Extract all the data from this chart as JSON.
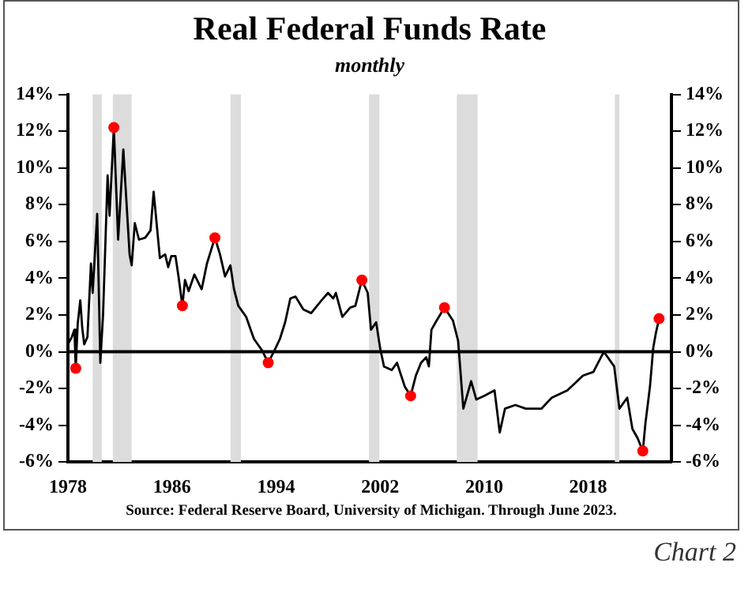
{
  "chart_data": {
    "type": "line",
    "title": "Real Federal Funds Rate",
    "subtitle": "monthly",
    "annotations": [
      "Source: Federal Reserve Board, University of Michigan. Through June 2023.",
      "Chart 2"
    ],
    "xlim": [
      1978,
      2024.4
    ],
    "xticks": [
      1978,
      1986,
      1994,
      2002,
      2010,
      2018
    ],
    "ylim": [
      -6,
      14
    ],
    "yticks": [
      {
        "value": -6,
        "label": "-6%"
      },
      {
        "value": -4,
        "label": "-4%"
      },
      {
        "value": -2,
        "label": "-2%"
      },
      {
        "value": 0,
        "label": "0%"
      },
      {
        "value": 2,
        "label": "2%"
      },
      {
        "value": 4,
        "label": "4%"
      },
      {
        "value": 6,
        "label": "6%"
      },
      {
        "value": 8,
        "label": "8%"
      },
      {
        "value": 10,
        "label": "10%"
      },
      {
        "value": 12,
        "label": "12%"
      },
      {
        "value": 14,
        "label": "14%"
      }
    ],
    "y2lim": [
      -6,
      14
    ],
    "y2ticks": [
      {
        "value": -6,
        "label": "-6%"
      },
      {
        "value": -4,
        "label": "-4%"
      },
      {
        "value": -2,
        "label": "-2%"
      },
      {
        "value": 0,
        "label": "0%"
      },
      {
        "value": 2,
        "label": "2%"
      },
      {
        "value": 4,
        "label": "4%"
      },
      {
        "value": 6,
        "label": "6%"
      },
      {
        "value": 8,
        "label": "8%"
      },
      {
        "value": 10,
        "label": "10%"
      },
      {
        "value": 12,
        "label": "12%"
      },
      {
        "value": 14,
        "label": "14%"
      }
    ],
    "grid": false,
    "legend": false,
    "series": [
      {
        "type": "line",
        "color": "#000000",
        "marker": "none",
        "line_style": "solid",
        "x": [
          1978.0,
          1978.3,
          1978.5,
          1978.6,
          1978.75,
          1978.95,
          1979.1,
          1979.25,
          1979.5,
          1979.77,
          1979.9,
          1980.25,
          1980.49,
          1980.7,
          1981.05,
          1981.2,
          1981.53,
          1981.86,
          1982.26,
          1982.74,
          1982.9,
          1983.14,
          1983.46,
          1983.94,
          1984.35,
          1984.59,
          1985.07,
          1985.47,
          1985.71,
          1985.95,
          1986.27,
          1986.5,
          1986.8,
          1987.0,
          1987.28,
          1987.72,
          1988.28,
          1988.69,
          1989.3,
          1989.69,
          1990.08,
          1990.49,
          1990.77,
          1991.1,
          1991.7,
          1992.3,
          1992.9,
          1993.4,
          1993.9,
          1994.3,
          1994.7,
          1995.1,
          1995.5,
          1996.1,
          1996.7,
          1997.5,
          1998.0,
          1998.4,
          1998.6,
          1999.1,
          1999.7,
          2000.1,
          2000.6,
          2001.05,
          2001.3,
          2001.7,
          2002.0,
          2002.3,
          2002.9,
          2003.3,
          2003.9,
          2004.35,
          2004.75,
          2005.15,
          2005.55,
          2005.75,
          2005.95,
          2006.35,
          2006.95,
          2007.6,
          2008.0,
          2008.4,
          2009.0,
          2009.4,
          2010.0,
          2010.8,
          2011.2,
          2011.6,
          2012.4,
          2013.2,
          2014.4,
          2015.2,
          2016.4,
          2017.6,
          2018.4,
          2019.2,
          2020.0,
          2020.4,
          2021.0,
          2021.4,
          2021.8,
          2022.2,
          2022.4,
          2022.75,
          2023.0,
          2023.2,
          2023.45
        ],
        "values": [
          0.4,
          0.8,
          1.2,
          -0.9,
          1.5,
          2.8,
          1.3,
          0.4,
          0.8,
          4.8,
          3.2,
          7.5,
          -0.6,
          2.0,
          9.6,
          7.4,
          12.2,
          6.1,
          11.0,
          5.3,
          4.7,
          7.0,
          6.1,
          6.2,
          6.6,
          8.7,
          5.1,
          5.3,
          4.6,
          5.2,
          5.2,
          4.1,
          2.5,
          3.9,
          3.3,
          4.2,
          3.4,
          4.8,
          6.2,
          5.3,
          4.1,
          4.7,
          3.4,
          2.5,
          1.9,
          0.7,
          0.1,
          -0.6,
          0.1,
          0.7,
          1.6,
          2.9,
          3.0,
          2.3,
          2.1,
          2.8,
          3.2,
          2.9,
          3.2,
          1.9,
          2.4,
          2.5,
          3.9,
          3.2,
          1.2,
          1.6,
          0.2,
          -0.8,
          -1.0,
          -0.6,
          -1.9,
          -2.4,
          -1.3,
          -0.6,
          -0.3,
          -0.8,
          1.2,
          1.7,
          2.4,
          1.7,
          0.6,
          -3.1,
          -1.6,
          -2.6,
          -2.4,
          -2.1,
          -4.4,
          -3.1,
          -2.9,
          -3.1,
          -3.1,
          -2.5,
          -2.1,
          -1.3,
          -1.1,
          0.0,
          -0.8,
          -3.1,
          -2.5,
          -4.2,
          -4.7,
          -5.4,
          -3.9,
          -1.9,
          0.2,
          1.0,
          1.8
        ]
      },
      {
        "type": "scatter",
        "color": "#ff0000",
        "marker": "circle",
        "x": [
          1978.6,
          1981.53,
          1986.8,
          1989.3,
          1993.4,
          2000.6,
          2004.35,
          2006.95,
          2022.2,
          2023.45
        ],
        "values": [
          -0.9,
          12.2,
          2.5,
          6.2,
          -0.6,
          3.9,
          -2.4,
          2.4,
          -5.4,
          1.8
        ]
      }
    ],
    "ref_lines": [
      {
        "axis": "y",
        "value": 0,
        "color": "#000000"
      }
    ],
    "bands": [
      {
        "axis": "x",
        "from": 1979.9,
        "to": 1980.6,
        "color": "#dcdcdc"
      },
      {
        "axis": "x",
        "from": 1981.45,
        "to": 1982.9,
        "color": "#dcdcdc"
      },
      {
        "axis": "x",
        "from": 1990.5,
        "to": 1991.3,
        "color": "#dcdcdc"
      },
      {
        "axis": "x",
        "from": 2001.15,
        "to": 2001.95,
        "color": "#dcdcdc"
      },
      {
        "axis": "x",
        "from": 2007.9,
        "to": 2009.5,
        "color": "#dcdcdc"
      },
      {
        "axis": "x",
        "from": 2020.05,
        "to": 2020.4,
        "color": "#dcdcdc"
      }
    ]
  }
}
